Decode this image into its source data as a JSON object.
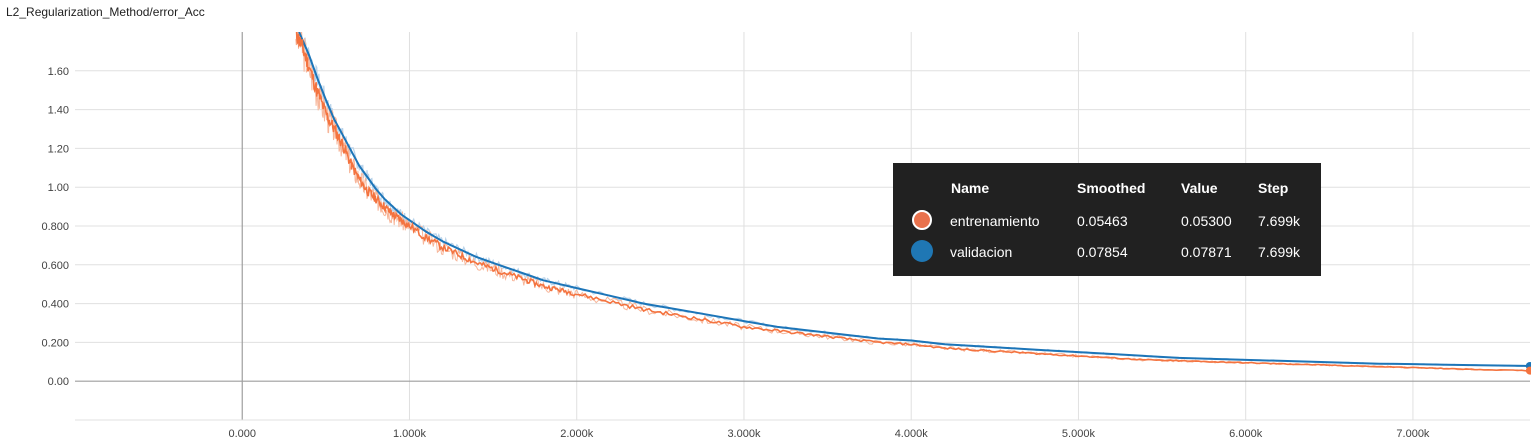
{
  "title": "L2_Regularization_Method/error_Acc",
  "colors": {
    "train": "#f4733f",
    "train_raw": "#f7b69a",
    "val": "#1c75b8",
    "val_raw": "#b9d3ea",
    "grid": "#e0e0e0",
    "axis": "#9e9e9e",
    "tooltip_bg": "#212121"
  },
  "chart_data": {
    "type": "line",
    "title": "L2_Regularization_Method/error_Acc",
    "xlabel": "",
    "ylabel": "",
    "x_ticks": [
      "0.000",
      "1.000k",
      "2.000k",
      "3.000k",
      "4.000k",
      "5.000k",
      "6.000k",
      "7.000k"
    ],
    "x_tick_values": [
      0,
      1000,
      2000,
      3000,
      4000,
      5000,
      6000,
      7000
    ],
    "y_ticks": [
      "0.00",
      "0.200",
      "0.400",
      "0.600",
      "0.800",
      "1.00",
      "1.20",
      "1.40",
      "1.60"
    ],
    "y_tick_values": [
      0,
      0.2,
      0.4,
      0.6,
      0.8,
      1.0,
      1.2,
      1.4,
      1.6
    ],
    "xlim": [
      -1000,
      7700
    ],
    "ylim": [
      -0.2,
      1.8
    ],
    "grid": true,
    "series": [
      {
        "name": "entrenamiento",
        "x": [
          320,
          360,
          400,
          450,
          500,
          550,
          600,
          650,
          700,
          750,
          800,
          850,
          900,
          950,
          1000,
          1100,
          1200,
          1300,
          1400,
          1500,
          1600,
          1700,
          1800,
          1900,
          2000,
          2200,
          2400,
          2600,
          2800,
          3000,
          3200,
          3400,
          3600,
          3800,
          4000,
          4200,
          4400,
          4600,
          4800,
          5000,
          5200,
          5400,
          5600,
          5800,
          6000,
          6200,
          6400,
          6600,
          6800,
          7000,
          7200,
          7400,
          7699
        ],
        "values": [
          1.8,
          1.72,
          1.62,
          1.49,
          1.38,
          1.3,
          1.22,
          1.12,
          1.04,
          0.98,
          0.94,
          0.9,
          0.86,
          0.83,
          0.8,
          0.74,
          0.69,
          0.65,
          0.61,
          0.58,
          0.55,
          0.52,
          0.49,
          0.47,
          0.45,
          0.41,
          0.37,
          0.34,
          0.31,
          0.28,
          0.26,
          0.24,
          0.22,
          0.2,
          0.19,
          0.17,
          0.16,
          0.15,
          0.14,
          0.13,
          0.12,
          0.11,
          0.105,
          0.1,
          0.095,
          0.09,
          0.085,
          0.08,
          0.075,
          0.07,
          0.065,
          0.06,
          0.05463
        ]
      },
      {
        "name": "validacion",
        "x": [
          340,
          400,
          450,
          500,
          550,
          600,
          650,
          700,
          750,
          800,
          850,
          900,
          950,
          1000,
          1100,
          1200,
          1300,
          1400,
          1500,
          1600,
          1700,
          1800,
          1900,
          2000,
          2200,
          2400,
          2600,
          2800,
          3000,
          3200,
          3400,
          3600,
          3800,
          4000,
          4200,
          4400,
          4600,
          4800,
          5000,
          5200,
          5400,
          5600,
          5800,
          6000,
          6200,
          6400,
          6600,
          6800,
          7000,
          7200,
          7400,
          7699
        ],
        "values": [
          1.8,
          1.68,
          1.56,
          1.45,
          1.35,
          1.27,
          1.19,
          1.11,
          1.05,
          0.99,
          0.94,
          0.9,
          0.86,
          0.83,
          0.77,
          0.72,
          0.68,
          0.64,
          0.61,
          0.58,
          0.55,
          0.52,
          0.5,
          0.48,
          0.44,
          0.4,
          0.37,
          0.34,
          0.31,
          0.28,
          0.26,
          0.24,
          0.22,
          0.21,
          0.19,
          0.18,
          0.17,
          0.16,
          0.15,
          0.14,
          0.13,
          0.12,
          0.115,
          0.11,
          0.105,
          0.1,
          0.095,
          0.09,
          0.088,
          0.085,
          0.082,
          0.07854
        ]
      }
    ]
  },
  "tooltip": {
    "headers": {
      "name": "Name",
      "smoothed": "Smoothed",
      "value": "Value",
      "step": "Step"
    },
    "rows": [
      {
        "name": "entrenamiento",
        "smoothed": "0.05463",
        "value": "0.05300",
        "step": "7.699k"
      },
      {
        "name": "validacion",
        "smoothed": "0.07854",
        "value": "0.07871",
        "step": "7.699k"
      }
    ]
  }
}
